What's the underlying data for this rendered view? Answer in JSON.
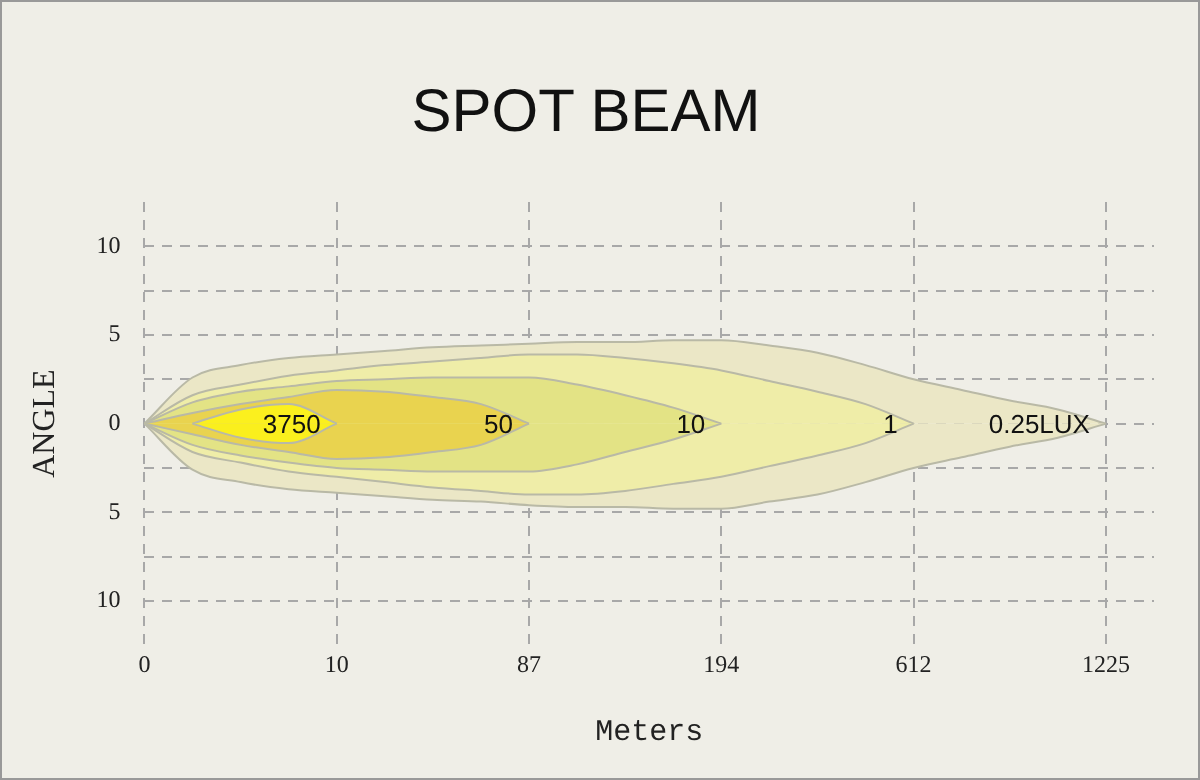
{
  "chart_data": {
    "type": "area",
    "title": "SPOT BEAM",
    "xlabel": "Meters",
    "ylabel": "ANGLE",
    "categories": [
      "0",
      null,
      null,
      null,
      "10",
      null,
      null,
      null,
      "87",
      null,
      null,
      null,
      "194",
      null,
      null,
      null,
      "612",
      null,
      null,
      null,
      "1225",
      null
    ],
    "ylim": [
      -12.5,
      12.5
    ],
    "yticks": [
      {
        "value": 10,
        "label": "10"
      },
      {
        "value": 7.5,
        "label": null
      },
      {
        "value": 5,
        "label": "5"
      },
      {
        "value": 2.5,
        "label": null
      },
      0,
      {
        "value": -2.5,
        "label": null
      },
      {
        "value": -5,
        "label": "5"
      },
      {
        "value": -7.5,
        "label": null
      },
      {
        "value": -10,
        "label": "10"
      }
    ],
    "grid": true,
    "legend": false,
    "line_style": "solid",
    "marker": "none",
    "series": [
      {
        "name": "0.25LUX",
        "color": "#ebe7c6",
        "values": [
          0,
          2.6,
          3.3,
          3.7,
          3.9,
          4.1,
          4.3,
          4.4,
          4.5,
          4.6,
          4.6,
          4.7,
          4.7,
          4.4,
          4.0,
          3.3,
          2.5,
          1.9,
          1.3,
          0.8,
          0,
          null
        ]
      },
      {
        "color": "#ebe7c6",
        "values": [
          0,
          -2.6,
          -3.3,
          -3.7,
          -3.9,
          -4.1,
          -4.3,
          -4.4,
          -4.6,
          -4.7,
          -4.7,
          -4.8,
          -4.8,
          -4.4,
          -4.0,
          -3.3,
          -2.5,
          -1.9,
          -1.3,
          -0.8,
          0,
          null
        ]
      },
      {
        "name": "1",
        "color": "#efeda8",
        "values": [
          0,
          1.6,
          2.2,
          2.7,
          3.0,
          3.3,
          3.5,
          3.7,
          3.9,
          3.9,
          3.7,
          3.4,
          3.0,
          2.4,
          1.8,
          1.1,
          0,
          null,
          null,
          null,
          null,
          null
        ]
      },
      {
        "color": "#efeda8",
        "values": [
          0,
          -1.6,
          -2.2,
          -2.7,
          -3.0,
          -3.3,
          -3.6,
          -3.8,
          -4.0,
          -4.0,
          -3.8,
          -3.4,
          -3.0,
          -2.4,
          -1.8,
          -1.1,
          0,
          null,
          null,
          null,
          null,
          null
        ]
      },
      {
        "name": "10",
        "color": "#e3e385",
        "values": [
          0,
          1.2,
          1.8,
          2.1,
          2.4,
          2.5,
          2.6,
          2.6,
          2.6,
          2.2,
          1.6,
          0.9,
          0,
          null,
          null,
          null,
          null,
          null,
          null,
          null,
          null,
          null
        ]
      },
      {
        "color": "#e3e385",
        "values": [
          0,
          -1.2,
          -1.8,
          -2.2,
          -2.5,
          -2.6,
          -2.7,
          -2.7,
          -2.7,
          -2.3,
          -1.6,
          -0.9,
          0,
          null,
          null,
          null,
          null,
          null,
          null,
          null,
          null,
          null
        ]
      },
      {
        "name": "50",
        "color": "#e9d34f",
        "values": [
          0,
          0.6,
          1.1,
          1.5,
          1.9,
          1.8,
          1.5,
          1.1,
          0,
          null,
          null,
          null,
          null,
          null,
          null,
          null,
          null,
          null,
          null,
          null,
          null,
          null
        ]
      },
      {
        "color": "#e9d34f",
        "values": [
          0,
          -0.6,
          -1.2,
          -1.6,
          -2.0,
          -1.9,
          -1.6,
          -1.2,
          0,
          null,
          null,
          null,
          null,
          null,
          null,
          null,
          null,
          null,
          null,
          null,
          null,
          null
        ]
      },
      {
        "name": "3750",
        "color": "#fbf01e",
        "values": [
          null,
          0,
          0.8,
          1.1,
          0,
          null,
          null,
          null,
          null,
          null,
          null,
          null,
          null,
          null,
          null,
          null,
          null,
          null,
          null,
          null,
          null,
          null
        ]
      },
      {
        "color": "#faef1d",
        "values": [
          null,
          0,
          -0.8,
          -1.1,
          0,
          null,
          null,
          null,
          null,
          null,
          null,
          null,
          null,
          null,
          null,
          null,
          null,
          null,
          null,
          null,
          null,
          null
        ]
      }
    ]
  }
}
